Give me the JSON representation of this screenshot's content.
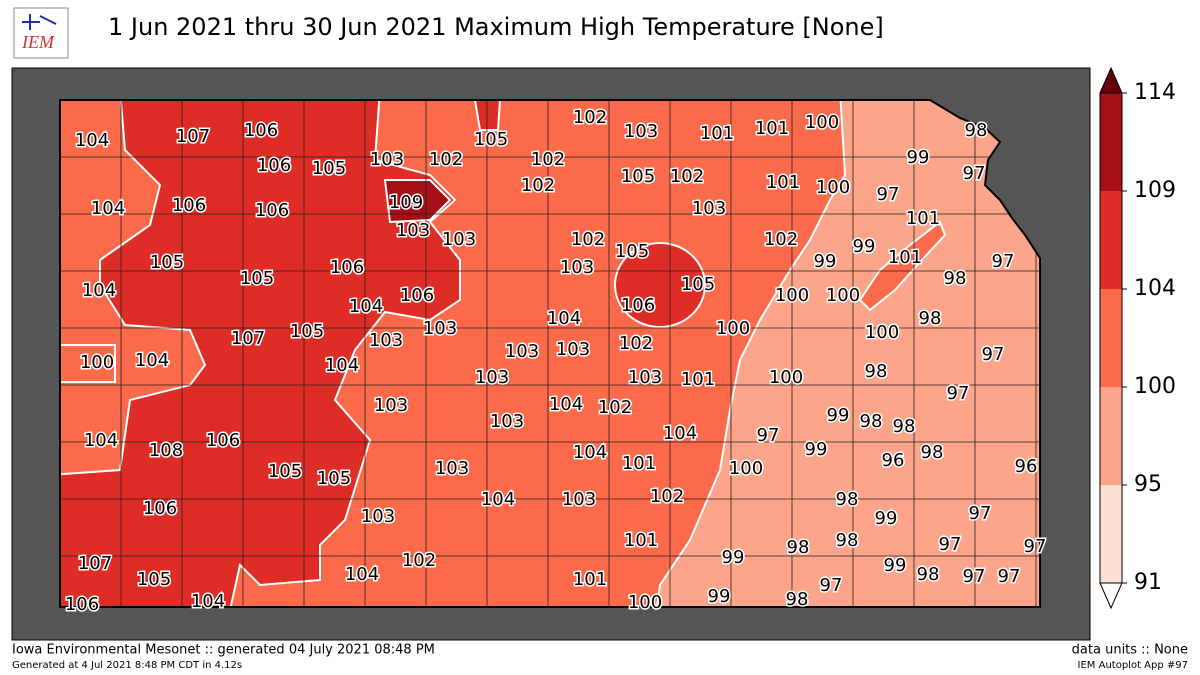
{
  "header": {
    "title": "1 Jun 2021 thru 30 Jun 2021 Maximum High Temperature [None]",
    "logo": "IEM"
  },
  "colorbar": {
    "ticks": [
      114,
      109,
      104,
      100,
      95,
      91
    ],
    "colors": [
      "#a50f15",
      "#de2d26",
      "#fb6a4a",
      "#fca58a",
      "#fee0d2"
    ],
    "over_color": "#67000d",
    "under_color": "#ffffff"
  },
  "stations": [
    104,
    107,
    106,
    105,
    102,
    103,
    101,
    101,
    100,
    98,
    106,
    105,
    103,
    102,
    102,
    105,
    102,
    99,
    97,
    104,
    106,
    106,
    109,
    102,
    101,
    100,
    97,
    103,
    101,
    103,
    103,
    102,
    105,
    102,
    99,
    99,
    101,
    97,
    105,
    105,
    106,
    103,
    98,
    104,
    104,
    106,
    105,
    100,
    100,
    107,
    105,
    103,
    104,
    106,
    98,
    100,
    100,
    100,
    104,
    103,
    104,
    103,
    103,
    102,
    97,
    103,
    103,
    101,
    100,
    98,
    97,
    103,
    104,
    102,
    99,
    98,
    98,
    104,
    108,
    106,
    103,
    104,
    97,
    99,
    96,
    98,
    105,
    105,
    103,
    104,
    101,
    100,
    96,
    106,
    104,
    103,
    102,
    98,
    103,
    99,
    97,
    101,
    98,
    97,
    97,
    99,
    98,
    107,
    102,
    104,
    105,
    101,
    97,
    99,
    98,
    97,
    97,
    106,
    104,
    100,
    99,
    98
  ],
  "footer": {
    "left": "Iowa Environmental Mesonet :: generated 04 July 2021 08:48 PM",
    "left_small": "Generated at 4 Jul 2021 8:48 PM CDT in 4.12s",
    "right": "data units :: None",
    "right_small": "IEM Autoplot App #97"
  }
}
